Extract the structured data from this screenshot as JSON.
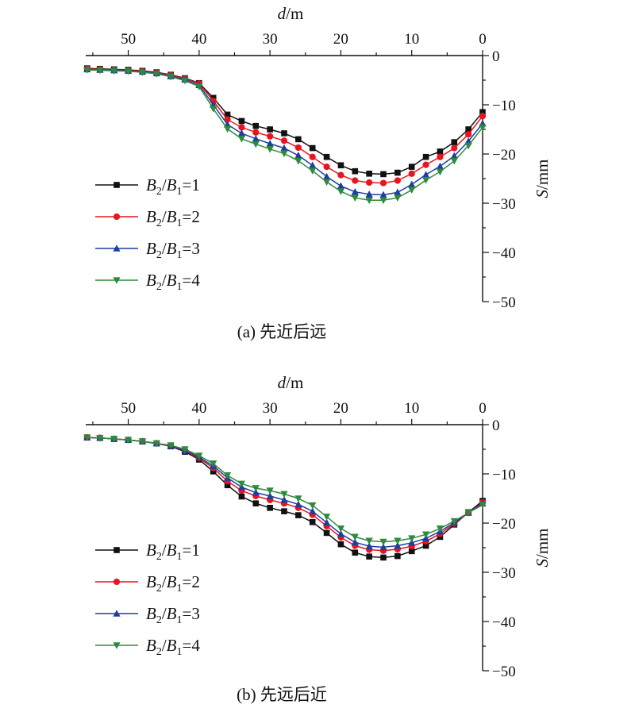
{
  "legend_labels": [
    {
      "b": "2",
      "a": "1",
      "k": "1"
    },
    {
      "b": "2",
      "a": "1",
      "k": "2"
    },
    {
      "b": "2",
      "a": "1",
      "k": "3"
    },
    {
      "b": "2",
      "a": "1",
      "k": "4"
    }
  ],
  "chart_data": [
    {
      "type": "line",
      "caption": "(a) 先近后远",
      "xlabel_var": "d",
      "xlabel_unit": "/m",
      "ylabel_var": "S",
      "ylabel_unit": "/mm",
      "xlim": [
        56,
        0
      ],
      "ylim": [
        -50,
        0
      ],
      "x_ticks": [
        50,
        40,
        30,
        20,
        10,
        0
      ],
      "y_ticks": [
        0,
        -10,
        -20,
        -30,
        -40,
        -50
      ],
      "y_tick_labels": [
        "0",
        "−10",
        "−20",
        "−30",
        "−40",
        "−50"
      ],
      "x_axis_position": "top",
      "y_axis_position": "right",
      "legend_position": "lower-left",
      "grid": false,
      "x": [
        55.8,
        54,
        52,
        50,
        48,
        46,
        44,
        42,
        40,
        38,
        36,
        34,
        32,
        30,
        28,
        26,
        24,
        22,
        20,
        18,
        16,
        14,
        12,
        10,
        8,
        6,
        4,
        2,
        0
      ],
      "series": [
        {
          "marker": "square",
          "color": "#111111",
          "values": [
            -2.6,
            -2.7,
            -2.8,
            -2.9,
            -3.1,
            -3.4,
            -3.9,
            -4.6,
            -5.6,
            -8.6,
            -12.0,
            -13.3,
            -14.3,
            -15.0,
            -15.8,
            -17.0,
            -18.8,
            -20.6,
            -22.3,
            -23.5,
            -24.0,
            -24.1,
            -23.8,
            -22.6,
            -20.6,
            -19.5,
            -17.6,
            -15.0,
            -11.5
          ]
        },
        {
          "marker": "circle",
          "color": "#e8141f",
          "values": [
            -2.7,
            -2.8,
            -2.9,
            -3.0,
            -3.2,
            -3.5,
            -4.0,
            -4.7,
            -5.7,
            -9.2,
            -13.0,
            -14.6,
            -15.6,
            -16.4,
            -17.3,
            -18.7,
            -20.6,
            -22.6,
            -24.3,
            -25.4,
            -25.8,
            -25.9,
            -25.4,
            -24.0,
            -22.2,
            -20.6,
            -18.8,
            -16.0,
            -12.3
          ]
        },
        {
          "marker": "triangle-up",
          "color": "#1f3f9e",
          "values": [
            -2.8,
            -2.9,
            -3.0,
            -3.1,
            -3.3,
            -3.6,
            -4.2,
            -4.9,
            -6.0,
            -10.0,
            -14.0,
            -15.8,
            -16.9,
            -17.9,
            -18.8,
            -20.3,
            -22.3,
            -24.6,
            -26.5,
            -27.7,
            -28.2,
            -28.3,
            -27.8,
            -26.2,
            -24.2,
            -22.5,
            -20.4,
            -17.4,
            -13.8
          ]
        },
        {
          "marker": "triangle-down",
          "color": "#2e8b3e",
          "values": [
            -2.9,
            -3.0,
            -3.1,
            -3.2,
            -3.4,
            -3.7,
            -4.3,
            -5.1,
            -6.3,
            -10.8,
            -14.9,
            -16.9,
            -18.0,
            -19.0,
            -19.9,
            -21.4,
            -23.4,
            -25.7,
            -27.6,
            -28.9,
            -29.4,
            -29.4,
            -28.9,
            -27.3,
            -25.3,
            -23.6,
            -21.4,
            -18.3,
            -14.6
          ]
        }
      ]
    },
    {
      "type": "line",
      "caption": "(b) 先远后近",
      "xlabel_var": "d",
      "xlabel_unit": "/m",
      "ylabel_var": "S",
      "ylabel_unit": "/mm",
      "xlim": [
        56,
        0
      ],
      "ylim": [
        -50,
        0
      ],
      "x_ticks": [
        50,
        40,
        30,
        20,
        10,
        0
      ],
      "y_ticks": [
        0,
        -10,
        -20,
        -30,
        -40,
        -50
      ],
      "y_tick_labels": [
        "0",
        "−10",
        "−20",
        "−30",
        "−40",
        "−50"
      ],
      "x_axis_position": "top",
      "y_axis_position": "right",
      "legend_position": "lower-left",
      "grid": false,
      "x": [
        55.8,
        54,
        52,
        50,
        48,
        46,
        44,
        42,
        40,
        38,
        36,
        34,
        32,
        30,
        28,
        26,
        24,
        22,
        20,
        18,
        16,
        14,
        12,
        10,
        8,
        6,
        4,
        2,
        0
      ],
      "series": [
        {
          "marker": "square",
          "color": "#111111",
          "values": [
            -2.6,
            -2.7,
            -2.9,
            -3.1,
            -3.4,
            -3.8,
            -4.4,
            -5.5,
            -7.1,
            -9.5,
            -12.3,
            -14.6,
            -16.0,
            -16.9,
            -17.6,
            -18.4,
            -19.8,
            -22.0,
            -24.3,
            -26.0,
            -26.8,
            -27.0,
            -26.7,
            -25.7,
            -24.6,
            -22.8,
            -20.3,
            -17.8,
            -15.5
          ]
        },
        {
          "marker": "circle",
          "color": "#e8141f",
          "values": [
            -2.6,
            -2.7,
            -2.9,
            -3.1,
            -3.4,
            -3.8,
            -4.3,
            -5.3,
            -6.8,
            -8.8,
            -11.5,
            -13.4,
            -14.5,
            -15.3,
            -16.0,
            -16.9,
            -18.3,
            -20.6,
            -22.9,
            -24.6,
            -25.4,
            -25.6,
            -25.3,
            -24.7,
            -23.7,
            -22.2,
            -20.1,
            -17.9,
            -15.8
          ]
        },
        {
          "marker": "triangle-up",
          "color": "#1f3f9e",
          "values": [
            -2.6,
            -2.7,
            -2.9,
            -3.1,
            -3.4,
            -3.8,
            -4.3,
            -5.2,
            -6.6,
            -8.4,
            -10.8,
            -12.7,
            -13.8,
            -14.5,
            -15.3,
            -16.2,
            -17.6,
            -19.9,
            -22.2,
            -23.9,
            -24.7,
            -24.9,
            -24.6,
            -24.0,
            -23.1,
            -21.7,
            -19.9,
            -17.9,
            -16.0
          ]
        },
        {
          "marker": "triangle-down",
          "color": "#2e8b3e",
          "values": [
            -2.6,
            -2.7,
            -2.9,
            -3.1,
            -3.4,
            -3.8,
            -4.2,
            -5.0,
            -6.3,
            -7.9,
            -10.3,
            -12.0,
            -12.9,
            -13.4,
            -14.1,
            -15.0,
            -16.4,
            -18.7,
            -21.1,
            -22.8,
            -23.6,
            -23.8,
            -23.6,
            -23.1,
            -22.3,
            -21.1,
            -19.6,
            -17.9,
            -16.3
          ]
        }
      ]
    }
  ]
}
